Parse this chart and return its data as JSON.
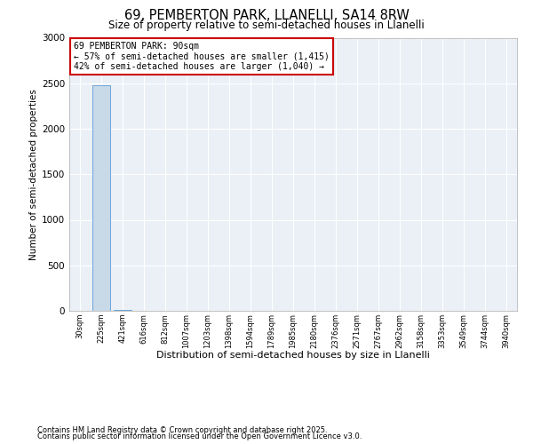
{
  "title1": "69, PEMBERTON PARK, LLANELLI, SA14 8RW",
  "title2": "Size of property relative to semi-detached houses in Llanelli",
  "xlabel": "Distribution of semi-detached houses by size in Llanelli",
  "ylabel": "Number of semi-detached properties",
  "categories": [
    "30sqm",
    "225sqm",
    "421sqm",
    "616sqm",
    "812sqm",
    "1007sqm",
    "1203sqm",
    "1398sqm",
    "1594sqm",
    "1789sqm",
    "1985sqm",
    "2180sqm",
    "2376sqm",
    "2571sqm",
    "2767sqm",
    "2962sqm",
    "3158sqm",
    "3353sqm",
    "3549sqm",
    "3744sqm",
    "3940sqm"
  ],
  "values": [
    0,
    2480,
    5,
    2,
    1,
    1,
    0,
    1,
    0,
    0,
    1,
    0,
    0,
    0,
    0,
    0,
    0,
    0,
    0,
    0,
    0
  ],
  "bar_color": "#c8d9e8",
  "bar_edge_color": "#5b9bd5",
  "annotation_title": "69 PEMBERTON PARK: 90sqm",
  "annotation_line1": "← 57% of semi-detached houses are smaller (1,415)",
  "annotation_line2": "42% of semi-detached houses are larger (1,040) →",
  "annotation_box_color": "#cc0000",
  "ylim": [
    0,
    3000
  ],
  "yticks": [
    0,
    500,
    1000,
    1500,
    2000,
    2500,
    3000
  ],
  "footnote1": "Contains HM Land Registry data © Crown copyright and database right 2025.",
  "footnote2": "Contains public sector information licensed under the Open Government Licence v3.0.",
  "bg_color": "#ffffff",
  "plot_bg_color": "#eaf0f6"
}
